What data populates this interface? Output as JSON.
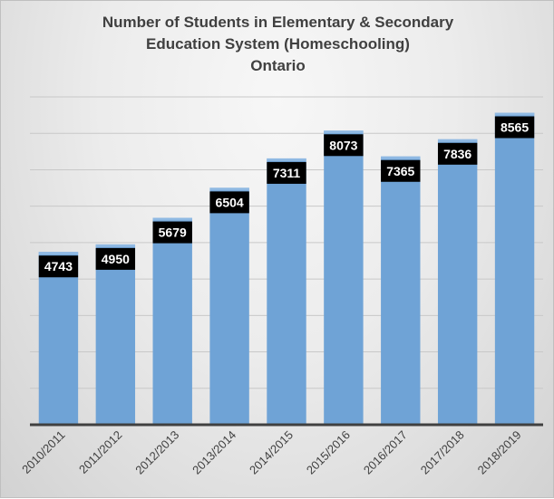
{
  "chart_data": {
    "type": "bar",
    "title": [
      "Number of Students in Elementary & Secondary",
      "Education System (Homeschooling)",
      "Ontario"
    ],
    "categories": [
      "2010/2011",
      "2011/2012",
      "2012/2013",
      "2013/2014",
      "2014/2015",
      "2015/2016",
      "2016/2017",
      "2017/2018",
      "2018/2019"
    ],
    "values": [
      4743,
      4950,
      5679,
      6504,
      7311,
      8073,
      7365,
      7836,
      8565
    ],
    "ylim": [
      0,
      9000
    ],
    "ytick_step": 1000,
    "grid": true,
    "y_axis_labels_shown": false,
    "data_labels": true,
    "colors": {
      "bar": "#6fa3d6",
      "bar_top": "#8fb9e3",
      "label_bg": "#000000",
      "label_text": "#ffffff",
      "grid": "#c8c8c8",
      "axis": "#404040"
    }
  }
}
